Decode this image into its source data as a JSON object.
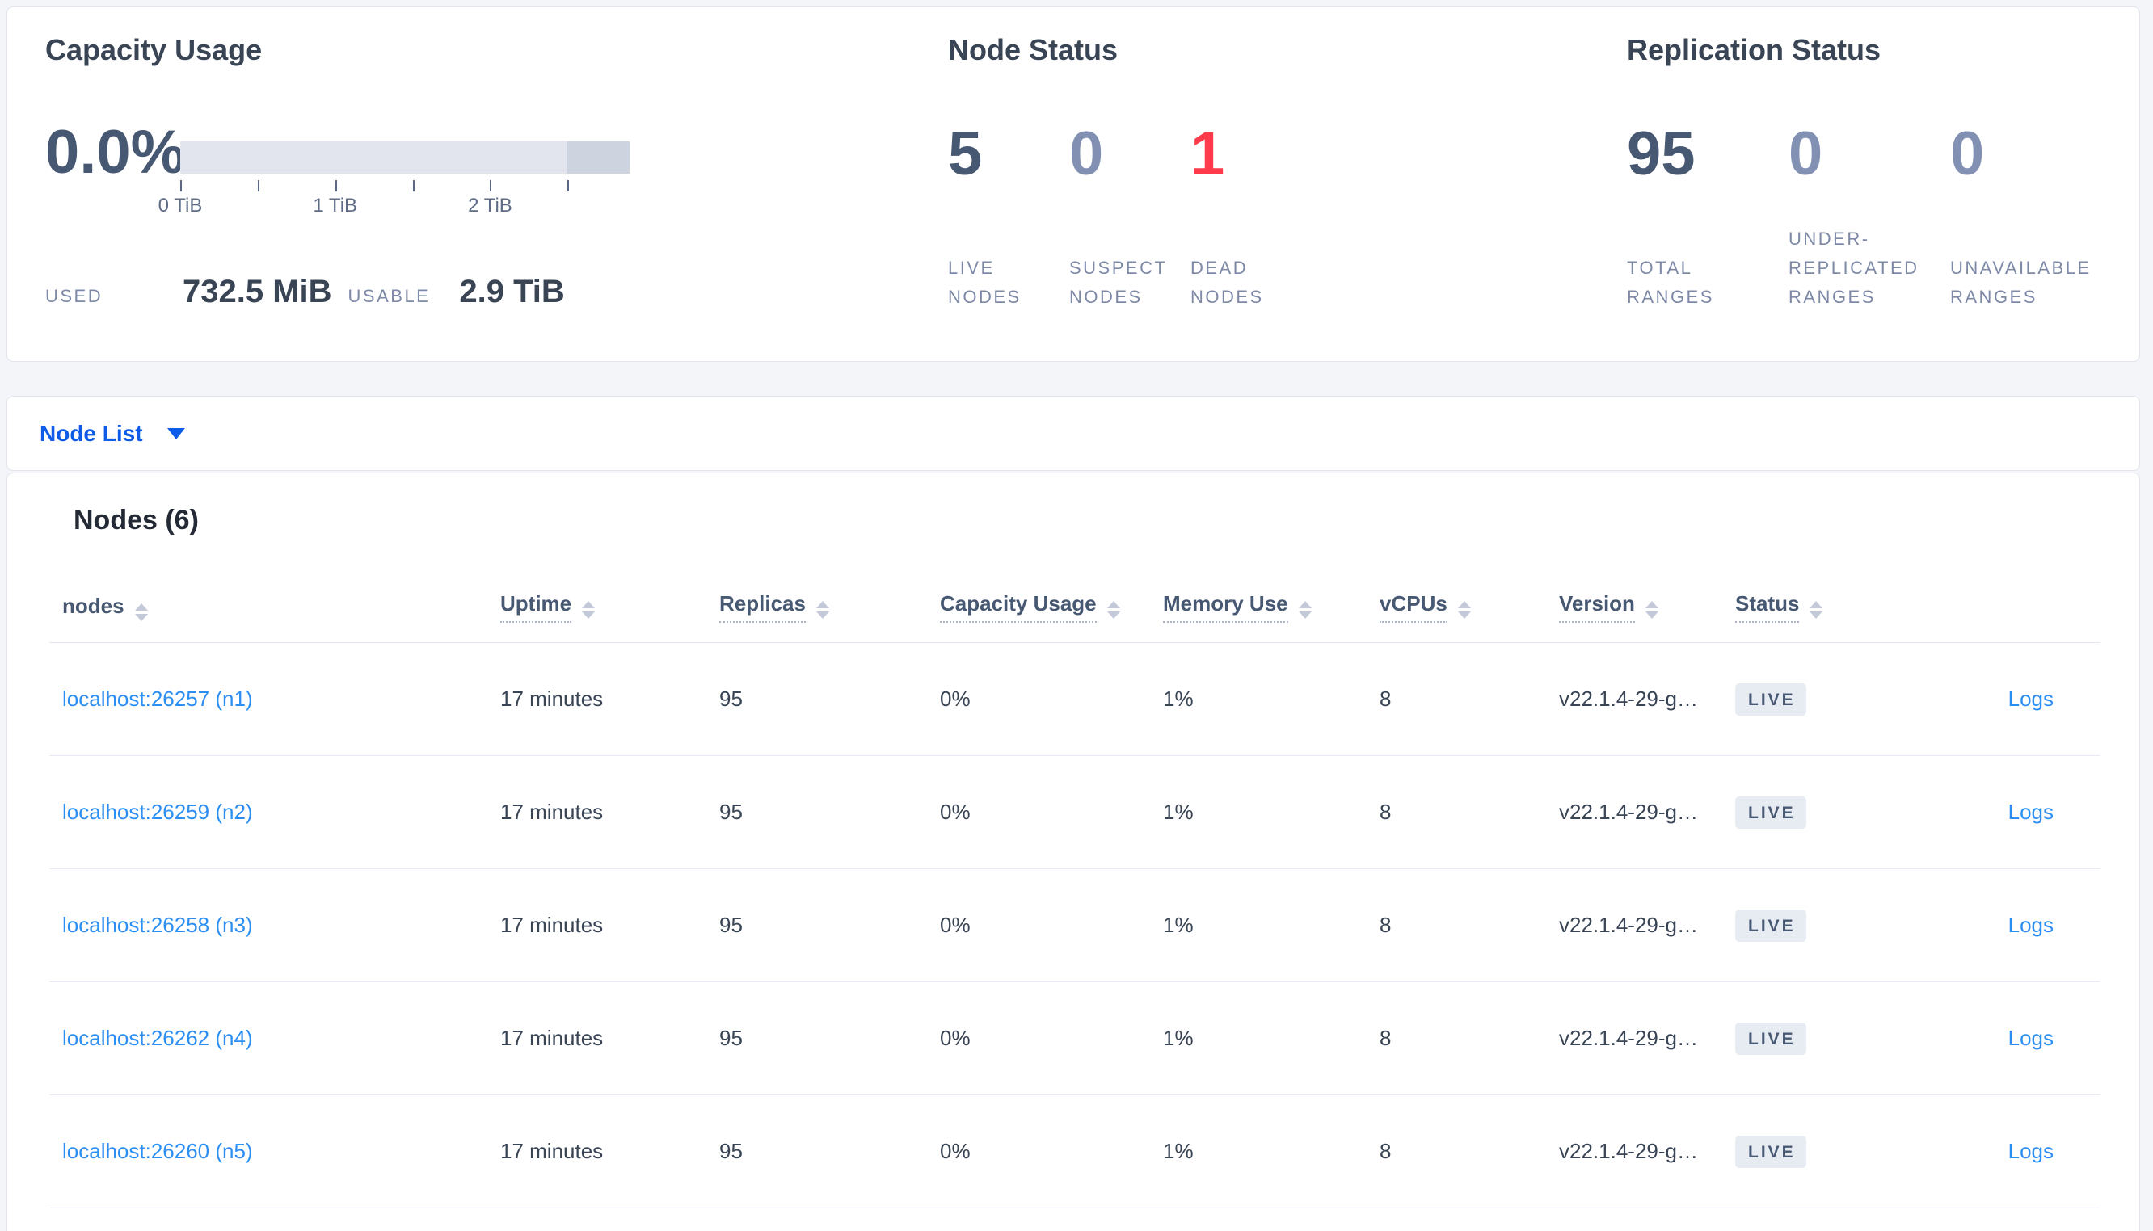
{
  "summary": {
    "capacity": {
      "title": "Capacity Usage",
      "percent": "0.0%",
      "tick_labels": [
        "0 TiB",
        "1 TiB",
        "2 TiB"
      ],
      "used_label": "USED",
      "used_value": "732.5 MiB",
      "usable_label": "USABLE",
      "usable_value": "2.9 TiB",
      "bar_track_color": "#e3e5ee",
      "bar_end_segment_color": "#ced3e0"
    },
    "node_status": {
      "title": "Node Status",
      "metrics": [
        {
          "value": "5",
          "label": "LIVE NODES",
          "color": "#475872"
        },
        {
          "value": "0",
          "label": "SUSPECT NODES",
          "color": "#8290b3"
        },
        {
          "value": "1",
          "label": "DEAD NODES",
          "color": "#ff3b4b"
        }
      ]
    },
    "replication_status": {
      "title": "Replication Status",
      "metrics": [
        {
          "value": "95",
          "label": "TOTAL RANGES",
          "color": "#475872"
        },
        {
          "value": "0",
          "label": "UNDER-REPLICATED RANGES",
          "color": "#8290b3"
        },
        {
          "value": "0",
          "label": "UNAVAILABLE RANGES",
          "color": "#8290b3"
        }
      ]
    }
  },
  "node_list": {
    "label": "Node List",
    "accent_color": "#0e5be8"
  },
  "nodes_section": {
    "heading": "Nodes (6)",
    "columns": [
      {
        "label": "nodes"
      },
      {
        "label": "Uptime"
      },
      {
        "label": "Replicas"
      },
      {
        "label": "Capacity Usage"
      },
      {
        "label": "Memory Use"
      },
      {
        "label": "vCPUs"
      },
      {
        "label": "Version"
      },
      {
        "label": "Status"
      }
    ],
    "link_color": "#2b8ef2",
    "rows": [
      {
        "node": "localhost:26257 (n1)",
        "uptime": "17 minutes",
        "replicas": "95",
        "capacity_usage": "0%",
        "memory_use": "1%",
        "vcpus": "8",
        "version": "v22.1.4-29-g…",
        "status": "LIVE",
        "logs": "Logs"
      },
      {
        "node": "localhost:26259 (n2)",
        "uptime": "17 minutes",
        "replicas": "95",
        "capacity_usage": "0%",
        "memory_use": "1%",
        "vcpus": "8",
        "version": "v22.1.4-29-g…",
        "status": "LIVE",
        "logs": "Logs"
      },
      {
        "node": "localhost:26258 (n3)",
        "uptime": "17 minutes",
        "replicas": "95",
        "capacity_usage": "0%",
        "memory_use": "1%",
        "vcpus": "8",
        "version": "v22.1.4-29-g…",
        "status": "LIVE",
        "logs": "Logs"
      },
      {
        "node": "localhost:26262 (n4)",
        "uptime": "17 minutes",
        "replicas": "95",
        "capacity_usage": "0%",
        "memory_use": "1%",
        "vcpus": "8",
        "version": "v22.1.4-29-g…",
        "status": "LIVE",
        "logs": "Logs"
      },
      {
        "node": "localhost:26260 (n5)",
        "uptime": "17 minutes",
        "replicas": "95",
        "capacity_usage": "0%",
        "memory_use": "1%",
        "vcpus": "8",
        "version": "v22.1.4-29-g…",
        "status": "LIVE",
        "logs": "Logs"
      }
    ]
  }
}
